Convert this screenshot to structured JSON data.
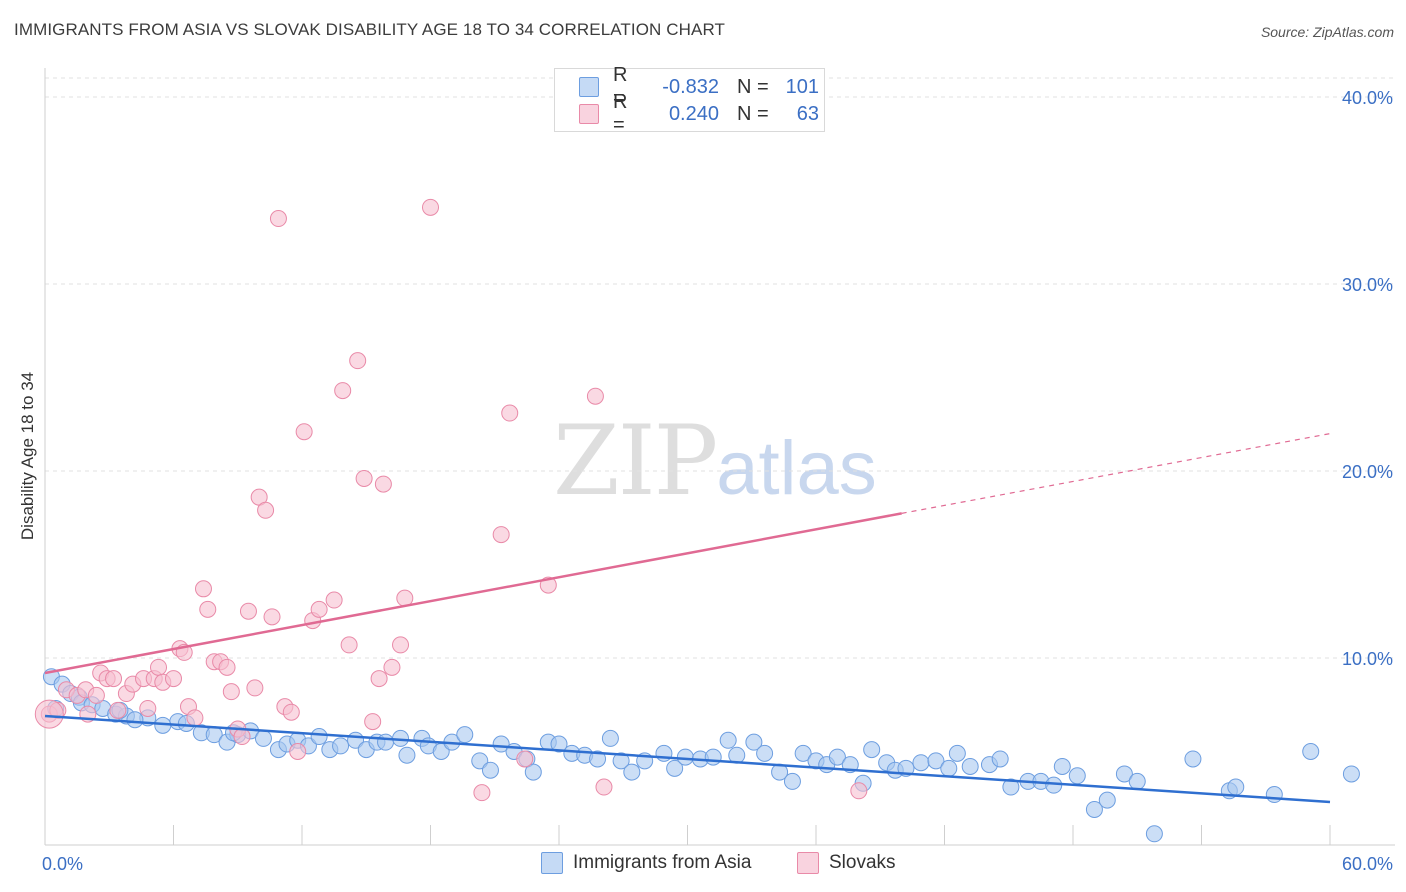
{
  "title": "IMMIGRANTS FROM ASIA VS SLOVAK DISABILITY AGE 18 TO 34 CORRELATION CHART",
  "source": "Source: ZipAtlas.com",
  "watermark": {
    "zip": "ZIP",
    "atlas": "atlas"
  },
  "legend": {
    "rows": [
      {
        "r_label": "R =",
        "r_value": "-0.832",
        "n_label": "N =",
        "n_value": "101",
        "color": "#a9c8f0",
        "border": "#6d9ee0"
      },
      {
        "r_label": "R =",
        "r_value": "0.240",
        "n_label": "N =",
        "n_value": "63",
        "color": "#f7bfd0",
        "border": "#e98aa8"
      }
    ]
  },
  "bottom_legend": [
    {
      "label": "Immigrants from Asia",
      "color": "#a9c8f0",
      "border": "#6d9ee0"
    },
    {
      "label": "Slovaks",
      "color": "#f7bfd0",
      "border": "#e98aa8"
    }
  ],
  "chart_data": {
    "type": "scatter",
    "xlabel": "",
    "ylabel": "Disability Age 18 to 34",
    "xlim": [
      0,
      60
    ],
    "ylim": [
      0,
      42
    ],
    "x_tick_labels": [
      {
        "value": 0,
        "label": "0.0%"
      },
      {
        "value": 60,
        "label": "60.0%"
      }
    ],
    "y_tick_labels": [
      {
        "value": 10,
        "label": "10.0%"
      },
      {
        "value": 20,
        "label": "20.0%"
      },
      {
        "value": 30,
        "label": "30.0%"
      },
      {
        "value": 40,
        "label": "40.0%"
      }
    ],
    "grid": true,
    "series": [
      {
        "name": "Immigrants from Asia",
        "color": "#6d9ee0",
        "fill": "#a9c8f0",
        "line_color": "#2f6fd0",
        "trend": {
          "x": [
            0,
            60
          ],
          "y": [
            6.9,
            2.3
          ],
          "dashed_from": null
        },
        "points": [
          [
            0.3,
            9.0
          ],
          [
            0.8,
            8.6
          ],
          [
            1.2,
            8.1
          ],
          [
            1.6,
            7.9
          ],
          [
            1.7,
            7.6
          ],
          [
            2.2,
            7.5
          ],
          [
            2.7,
            7.3
          ],
          [
            3.3,
            7.0
          ],
          [
            3.8,
            6.9
          ],
          [
            4.8,
            6.8
          ],
          [
            4.2,
            6.7
          ],
          [
            6.2,
            6.6
          ],
          [
            5.5,
            6.4
          ],
          [
            6.6,
            6.5
          ],
          [
            7.3,
            6.0
          ],
          [
            7.9,
            5.9
          ],
          [
            8.5,
            5.5
          ],
          [
            9.0,
            5.9
          ],
          [
            9.6,
            6.1
          ],
          [
            10.2,
            5.7
          ],
          [
            10.9,
            5.1
          ],
          [
            11.3,
            5.4
          ],
          [
            11.8,
            5.6
          ],
          [
            12.3,
            5.3
          ],
          [
            12.8,
            5.8
          ],
          [
            13.3,
            5.1
          ],
          [
            13.8,
            5.3
          ],
          [
            14.5,
            5.6
          ],
          [
            15.0,
            5.1
          ],
          [
            15.5,
            5.5
          ],
          [
            15.9,
            5.5
          ],
          [
            16.6,
            5.7
          ],
          [
            16.9,
            4.8
          ],
          [
            17.6,
            5.7
          ],
          [
            17.9,
            5.3
          ],
          [
            18.5,
            5.0
          ],
          [
            19.0,
            5.5
          ],
          [
            19.6,
            5.9
          ],
          [
            20.3,
            4.5
          ],
          [
            20.8,
            4.0
          ],
          [
            21.3,
            5.4
          ],
          [
            21.9,
            5.0
          ],
          [
            22.5,
            4.6
          ],
          [
            22.8,
            3.9
          ],
          [
            23.5,
            5.5
          ],
          [
            24.0,
            5.4
          ],
          [
            24.6,
            4.9
          ],
          [
            25.2,
            4.8
          ],
          [
            25.8,
            4.6
          ],
          [
            26.4,
            5.7
          ],
          [
            26.9,
            4.5
          ],
          [
            27.4,
            3.9
          ],
          [
            28.0,
            4.5
          ],
          [
            28.9,
            4.9
          ],
          [
            29.4,
            4.1
          ],
          [
            29.9,
            4.7
          ],
          [
            30.6,
            4.6
          ],
          [
            31.2,
            4.7
          ],
          [
            31.9,
            5.6
          ],
          [
            32.3,
            4.8
          ],
          [
            33.1,
            5.5
          ],
          [
            33.6,
            4.9
          ],
          [
            34.3,
            3.9
          ],
          [
            34.9,
            3.4
          ],
          [
            35.4,
            4.9
          ],
          [
            36.0,
            4.5
          ],
          [
            36.5,
            4.3
          ],
          [
            37.0,
            4.7
          ],
          [
            37.6,
            4.3
          ],
          [
            38.2,
            3.3
          ],
          [
            38.6,
            5.1
          ],
          [
            39.3,
            4.4
          ],
          [
            39.7,
            4.0
          ],
          [
            40.2,
            4.1
          ],
          [
            40.9,
            4.4
          ],
          [
            41.6,
            4.5
          ],
          [
            42.2,
            4.1
          ],
          [
            42.6,
            4.9
          ],
          [
            43.2,
            4.2
          ],
          [
            44.1,
            4.3
          ],
          [
            44.6,
            4.6
          ],
          [
            45.1,
            3.1
          ],
          [
            45.9,
            3.4
          ],
          [
            46.5,
            3.4
          ],
          [
            47.1,
            3.2
          ],
          [
            47.5,
            4.2
          ],
          [
            48.2,
            3.7
          ],
          [
            49.0,
            1.9
          ],
          [
            49.6,
            2.4
          ],
          [
            50.4,
            3.8
          ],
          [
            51.0,
            3.4
          ],
          [
            51.8,
            0.6
          ],
          [
            53.6,
            4.6
          ],
          [
            55.3,
            2.9
          ],
          [
            55.6,
            3.1
          ],
          [
            57.4,
            2.7
          ],
          [
            59.1,
            5.0
          ],
          [
            61.0,
            3.8
          ],
          [
            0.5,
            7.3
          ],
          [
            3.5,
            7.2
          ],
          [
            8.8,
            6.0
          ]
        ]
      },
      {
        "name": "Slovaks",
        "color": "#e98aa8",
        "fill": "#f7bfd0",
        "line_color": "#e06a93",
        "trend": {
          "x": [
            0,
            60
          ],
          "y": [
            9.2,
            22.0
          ],
          "dashed_from": 40
        },
        "points": [
          [
            0.2,
            7.0
          ],
          [
            0.6,
            7.2
          ],
          [
            1.0,
            8.3
          ],
          [
            1.5,
            8.0
          ],
          [
            1.9,
            8.3
          ],
          [
            2.4,
            8.0
          ],
          [
            2.6,
            9.2
          ],
          [
            2.9,
            8.9
          ],
          [
            3.2,
            8.9
          ],
          [
            3.4,
            7.2
          ],
          [
            3.8,
            8.1
          ],
          [
            4.1,
            8.6
          ],
          [
            4.6,
            8.9
          ],
          [
            4.8,
            7.3
          ],
          [
            5.1,
            8.9
          ],
          [
            5.3,
            9.5
          ],
          [
            5.5,
            8.7
          ],
          [
            6.0,
            8.9
          ],
          [
            6.3,
            10.5
          ],
          [
            6.5,
            10.3
          ],
          [
            6.7,
            7.4
          ],
          [
            7.0,
            6.8
          ],
          [
            7.4,
            13.7
          ],
          [
            7.6,
            12.6
          ],
          [
            7.9,
            9.8
          ],
          [
            8.2,
            9.8
          ],
          [
            8.5,
            9.5
          ],
          [
            8.7,
            8.2
          ],
          [
            9.0,
            6.2
          ],
          [
            9.2,
            5.8
          ],
          [
            9.5,
            12.5
          ],
          [
            9.8,
            8.4
          ],
          [
            10.0,
            18.6
          ],
          [
            10.3,
            17.9
          ],
          [
            10.6,
            12.2
          ],
          [
            10.9,
            33.5
          ],
          [
            11.2,
            7.4
          ],
          [
            11.5,
            7.1
          ],
          [
            11.8,
            5.0
          ],
          [
            12.1,
            22.1
          ],
          [
            12.5,
            12.0
          ],
          [
            12.8,
            12.6
          ],
          [
            13.5,
            13.1
          ],
          [
            13.9,
            24.3
          ],
          [
            14.2,
            10.7
          ],
          [
            14.6,
            25.9
          ],
          [
            14.9,
            19.6
          ],
          [
            15.3,
            6.6
          ],
          [
            15.6,
            8.9
          ],
          [
            15.8,
            19.3
          ],
          [
            16.2,
            9.5
          ],
          [
            16.6,
            10.7
          ],
          [
            16.8,
            13.2
          ],
          [
            20.4,
            2.8
          ],
          [
            21.3,
            16.6
          ],
          [
            21.7,
            23.1
          ],
          [
            22.4,
            4.6
          ],
          [
            23.5,
            13.9
          ],
          [
            25.7,
            24.0
          ],
          [
            26.1,
            3.1
          ],
          [
            18.0,
            34.1
          ],
          [
            38.0,
            2.9
          ],
          [
            2.0,
            7.0
          ]
        ]
      }
    ]
  }
}
